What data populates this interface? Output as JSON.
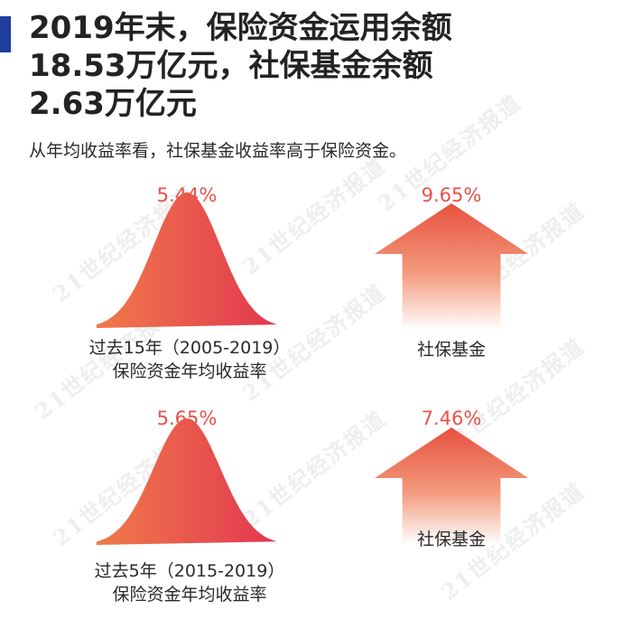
{
  "headline": {
    "line1": "2019年末，保险资金运用余额",
    "line2": "18.53万亿元，社保基金余额",
    "line3": "2.63万亿元"
  },
  "subtitle": "从年均收益率看，社保基金收益率高于保险资金。",
  "watermark": "21世纪经济报道",
  "colors": {
    "accent": "#1f3e9b",
    "mark_start": "#f07a4a",
    "mark_end": "#e2374f",
    "percent_text": "#e8524a"
  },
  "chart_data": [
    {
      "type": "bar",
      "categories": [
        "过去15年（2005-2019）保险资金年均收益率",
        "社保基金"
      ],
      "values": [
        5.44,
        9.65
      ],
      "value_labels": [
        "5.44%",
        "9.65%"
      ],
      "label_lines": [
        [
          "过去15年（2005-2019）",
          "保险资金年均收益率"
        ],
        [
          "社保基金"
        ]
      ]
    },
    {
      "type": "bar",
      "categories": [
        "过去5年（2015-2019）保险资金年均收益率",
        "社保基金"
      ],
      "values": [
        5.65,
        7.46
      ],
      "value_labels": [
        "5.65%",
        "7.46%"
      ],
      "label_lines": [
        [
          "过去5年（2015-2019）",
          "保险资金年均收益率"
        ],
        [
          "社保基金"
        ]
      ]
    }
  ]
}
